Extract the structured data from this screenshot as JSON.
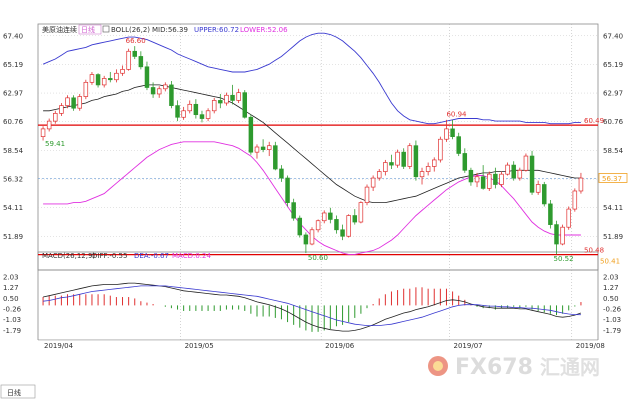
{
  "header": {
    "title": "美原油连续",
    "period": "日线",
    "boll_label": "BOLL(26,2)",
    "mid_label": "MID:56.39",
    "upper_label": "UPPER:60.72",
    "lower_label": "LOWER:52.06"
  },
  "macd_header": {
    "label": "MACD(26,12,9)",
    "diff_label": "DIFF:-0.55",
    "dea_label": "DEA:-0.67",
    "macd_label": "MACD:0.24"
  },
  "period_button": "日线",
  "watermark": {
    "brand": "FX678",
    "cn": "汇通网"
  },
  "colors": {
    "up": "#e03030",
    "down": "#2e9a2e",
    "mid_line": "#222222",
    "upper_band": "#3a3ad0",
    "lower_band": "#e030e0",
    "level_line": "#e00000",
    "last_price_box": "#f0a020"
  },
  "chart_data": {
    "type": "candlestick",
    "y_axis_price": [
      "67.40",
      "65.19",
      "62.97",
      "60.76",
      "58.54",
      "56.32",
      "54.11",
      "51.89"
    ],
    "y_axis_macd": [
      "2.03",
      "1.27",
      "0.50",
      "-0.26",
      "-1.03",
      "-1.79"
    ],
    "x_axis_labels": [
      "2019/04",
      "2019/05",
      "2019/06",
      "2019/07",
      "2019/08"
    ],
    "ylim": [
      49.6,
      68.0
    ],
    "macd_ylim": [
      -2.2,
      2.4
    ],
    "annotations": [
      "66.60",
      "59.41",
      "50.60",
      "60.94",
      "50.52",
      "60.49",
      "56.37",
      "50.48",
      "50.41"
    ],
    "resistance_level": 60.49,
    "support_level": 50.48,
    "last_close": 56.37,
    "series": [
      {
        "name": "K",
        "ohlc": [
          [
            59.6,
            60.4,
            59.3,
            60.2
          ],
          [
            60.2,
            61.0,
            60.0,
            60.8
          ],
          [
            60.8,
            61.6,
            60.6,
            61.4
          ],
          [
            61.4,
            62.2,
            61.2,
            62.0
          ],
          [
            62.0,
            62.8,
            61.8,
            62.6
          ],
          [
            62.6,
            62.8,
            61.6,
            61.8
          ],
          [
            61.8,
            62.9,
            61.6,
            62.7
          ],
          [
            62.7,
            64.0,
            62.5,
            63.8
          ],
          [
            63.8,
            64.6,
            63.6,
            64.4
          ],
          [
            64.4,
            64.5,
            63.4,
            63.6
          ],
          [
            63.6,
            64.3,
            63.4,
            64.1
          ],
          [
            64.1,
            64.6,
            63.8,
            64.0
          ],
          [
            64.0,
            64.8,
            63.8,
            64.5
          ],
          [
            64.5,
            65.1,
            64.3,
            64.8
          ],
          [
            64.8,
            66.4,
            64.7,
            66.2
          ],
          [
            66.2,
            66.6,
            65.6,
            65.8
          ],
          [
            65.8,
            66.2,
            64.8,
            65.0
          ],
          [
            65.0,
            65.4,
            63.2,
            63.4
          ],
          [
            63.4,
            63.8,
            62.6,
            62.9
          ],
          [
            62.9,
            63.5,
            62.6,
            63.3
          ],
          [
            63.3,
            63.8,
            63.1,
            63.6
          ],
          [
            63.6,
            63.9,
            61.8,
            62.0
          ],
          [
            62.0,
            62.4,
            60.8,
            61.1
          ],
          [
            61.1,
            61.9,
            60.9,
            61.6
          ],
          [
            61.6,
            62.4,
            61.4,
            62.1
          ],
          [
            62.1,
            62.5,
            61.0,
            61.3
          ],
          [
            61.3,
            61.6,
            60.7,
            61.0
          ],
          [
            61.0,
            61.8,
            60.8,
            61.6
          ],
          [
            61.6,
            62.6,
            61.4,
            62.4
          ],
          [
            62.4,
            62.9,
            61.8,
            62.2
          ],
          [
            62.2,
            63.0,
            62.0,
            62.8
          ],
          [
            62.8,
            63.6,
            62.1,
            62.4
          ],
          [
            62.4,
            63.3,
            62.2,
            63.0
          ],
          [
            63.0,
            63.2,
            61.0,
            61.1
          ],
          [
            61.1,
            61.3,
            58.2,
            58.4
          ],
          [
            58.4,
            59.0,
            57.9,
            58.8
          ],
          [
            58.8,
            59.4,
            58.4,
            58.6
          ],
          [
            58.6,
            59.2,
            58.1,
            58.9
          ],
          [
            58.9,
            59.2,
            57.0,
            57.1
          ],
          [
            57.1,
            57.4,
            56.1,
            56.4
          ],
          [
            56.4,
            56.6,
            54.2,
            54.5
          ],
          [
            54.5,
            54.8,
            53.1,
            53.3
          ],
          [
            53.3,
            53.5,
            51.8,
            52.0
          ],
          [
            52.0,
            52.2,
            50.6,
            51.3
          ],
          [
            51.3,
            52.6,
            51.2,
            52.4
          ],
          [
            52.4,
            53.2,
            52.2,
            53.1
          ],
          [
            53.1,
            53.9,
            52.9,
            53.7
          ],
          [
            53.7,
            54.1,
            52.9,
            53.2
          ],
          [
            53.2,
            53.5,
            52.1,
            52.4
          ],
          [
            52.4,
            52.8,
            51.6,
            51.9
          ],
          [
            51.9,
            53.6,
            51.8,
            53.5
          ],
          [
            53.5,
            54.0,
            52.8,
            53.0
          ],
          [
            53.0,
            54.6,
            52.9,
            54.5
          ],
          [
            54.5,
            55.9,
            54.3,
            55.7
          ],
          [
            55.7,
            56.6,
            55.4,
            56.4
          ],
          [
            56.4,
            57.1,
            56.2,
            56.9
          ],
          [
            56.9,
            57.8,
            56.6,
            57.6
          ],
          [
            57.6,
            58.2,
            57.1,
            57.4
          ],
          [
            57.4,
            58.6,
            57.2,
            58.4
          ],
          [
            58.4,
            58.7,
            57.1,
            57.3
          ],
          [
            57.3,
            59.1,
            57.1,
            58.9
          ],
          [
            58.9,
            59.3,
            56.2,
            56.5
          ],
          [
            56.5,
            57.2,
            55.9,
            56.9
          ],
          [
            56.9,
            57.6,
            56.6,
            57.3
          ],
          [
            57.3,
            58.0,
            56.9,
            57.8
          ],
          [
            57.8,
            59.6,
            57.6,
            59.4
          ],
          [
            59.4,
            60.9,
            59.2,
            60.2
          ],
          [
            60.2,
            60.9,
            59.4,
            59.6
          ],
          [
            59.6,
            59.9,
            58.1,
            58.3
          ],
          [
            58.3,
            58.7,
            56.8,
            57.0
          ],
          [
            57.0,
            57.2,
            55.8,
            56.1
          ],
          [
            56.1,
            56.8,
            55.7,
            56.5
          ],
          [
            56.5,
            57.4,
            55.5,
            55.6
          ],
          [
            55.6,
            56.9,
            55.4,
            56.7
          ],
          [
            56.7,
            57.2,
            55.6,
            55.9
          ],
          [
            55.9,
            56.9,
            55.7,
            56.7
          ],
          [
            56.7,
            57.6,
            56.6,
            57.4
          ],
          [
            57.4,
            57.7,
            56.2,
            56.4
          ],
          [
            56.4,
            57.2,
            56.2,
            57.0
          ],
          [
            57.0,
            58.3,
            56.9,
            58.1
          ],
          [
            58.1,
            58.5,
            55.1,
            55.3
          ],
          [
            55.3,
            56.2,
            55.1,
            55.9
          ],
          [
            55.9,
            56.1,
            54.2,
            54.4
          ],
          [
            54.4,
            54.7,
            52.5,
            52.8
          ],
          [
            52.8,
            53.1,
            50.5,
            51.3
          ],
          [
            51.3,
            52.8,
            51.2,
            52.6
          ],
          [
            52.6,
            54.2,
            52.4,
            54.0
          ],
          [
            54.0,
            55.6,
            53.8,
            55.4
          ],
          [
            55.4,
            56.8,
            55.2,
            56.4
          ]
        ]
      },
      {
        "name": "MID",
        "values": [
          61.6,
          61.6,
          61.7,
          61.8,
          61.9,
          62.0,
          62.1,
          62.2,
          62.4,
          62.5,
          62.7,
          62.8,
          62.9,
          63.1,
          63.2,
          63.4,
          63.5,
          63.6,
          63.6,
          63.6,
          63.5,
          63.4,
          63.3,
          63.2,
          63.1,
          63.0,
          62.9,
          62.8,
          62.7,
          62.6,
          62.4,
          62.2,
          61.9,
          61.6,
          61.3,
          61.0,
          60.7,
          60.3,
          59.9,
          59.5,
          59.1,
          58.7,
          58.3,
          57.9,
          57.5,
          57.1,
          56.7,
          56.3,
          55.9,
          55.6,
          55.3,
          55.0,
          54.8,
          54.6,
          54.5,
          54.5,
          54.5,
          54.6,
          54.7,
          54.8,
          54.9,
          55.0,
          55.2,
          55.4,
          55.6,
          55.8,
          56.0,
          56.2,
          56.4,
          56.5,
          56.6,
          56.7,
          56.8,
          56.8,
          56.9,
          56.9,
          56.9,
          57.0,
          57.0,
          57.0,
          57.0,
          57.0,
          56.9,
          56.8,
          56.7,
          56.6,
          56.5,
          56.4,
          56.4
        ]
      },
      {
        "name": "UPPER",
        "values": [
          65.2,
          65.4,
          65.6,
          65.9,
          66.2,
          66.3,
          66.4,
          66.5,
          66.7,
          66.8,
          66.9,
          67.0,
          67.1,
          67.2,
          67.3,
          67.3,
          67.2,
          67.1,
          66.9,
          66.7,
          66.5,
          66.3,
          66.0,
          65.8,
          65.6,
          65.4,
          65.2,
          65.0,
          64.9,
          64.8,
          64.7,
          64.6,
          64.6,
          64.6,
          64.7,
          64.8,
          65.0,
          65.2,
          65.5,
          65.8,
          66.2,
          66.6,
          67.0,
          67.3,
          67.5,
          67.6,
          67.6,
          67.5,
          67.3,
          67.0,
          66.6,
          66.2,
          65.7,
          65.1,
          64.5,
          63.8,
          63.0,
          62.2,
          61.6,
          61.2,
          60.9,
          60.8,
          60.7,
          60.6,
          60.6,
          60.7,
          60.8,
          60.9,
          61.0,
          61.0,
          61.0,
          61.0,
          60.9,
          60.9,
          60.8,
          60.8,
          60.8,
          60.8,
          60.8,
          60.7,
          60.7,
          60.7,
          60.7,
          60.6,
          60.6,
          60.6,
          60.6,
          60.7,
          60.7
        ]
      },
      {
        "name": "LOWER",
        "values": [
          54.4,
          54.4,
          54.4,
          54.4,
          54.4,
          54.5,
          54.5,
          54.6,
          54.8,
          55.0,
          55.2,
          55.6,
          56.0,
          56.4,
          56.8,
          57.2,
          57.6,
          58.0,
          58.3,
          58.6,
          58.8,
          59.0,
          59.1,
          59.2,
          59.2,
          59.2,
          59.2,
          59.2,
          59.2,
          59.1,
          59.0,
          58.9,
          58.7,
          58.4,
          58.1,
          57.6,
          57.0,
          56.3,
          55.6,
          54.9,
          54.2,
          53.5,
          52.9,
          52.4,
          51.9,
          51.5,
          51.2,
          51.0,
          50.8,
          50.6,
          50.5,
          50.5,
          50.6,
          50.7,
          50.8,
          51.0,
          51.3,
          51.6,
          52.0,
          52.5,
          53.0,
          53.5,
          53.9,
          54.3,
          54.7,
          55.1,
          55.5,
          55.8,
          56.1,
          56.3,
          56.5,
          56.6,
          56.6,
          56.4,
          56.2,
          55.8,
          55.3,
          54.8,
          54.2,
          53.6,
          53.0,
          52.6,
          52.3,
          52.1,
          52.0,
          52.0,
          52.0,
          52.0,
          52.0
        ]
      },
      {
        "name": "DIFF",
        "values": [
          0.6,
          0.7,
          0.8,
          0.9,
          1.0,
          1.1,
          1.2,
          1.3,
          1.4,
          1.45,
          1.5,
          1.5,
          1.5,
          1.55,
          1.6,
          1.6,
          1.55,
          1.5,
          1.45,
          1.4,
          1.35,
          1.25,
          1.15,
          1.05,
          1.0,
          0.95,
          0.9,
          0.85,
          0.8,
          0.75,
          0.75,
          0.7,
          0.65,
          0.55,
          0.4,
          0.25,
          0.15,
          0.05,
          -0.1,
          -0.25,
          -0.45,
          -0.7,
          -0.95,
          -1.2,
          -1.4,
          -1.55,
          -1.65,
          -1.75,
          -1.8,
          -1.85,
          -1.85,
          -1.8,
          -1.7,
          -1.55,
          -1.4,
          -1.2,
          -1.0,
          -0.85,
          -0.7,
          -0.55,
          -0.45,
          -0.3,
          -0.2,
          -0.1,
          0.05,
          0.2,
          0.35,
          0.4,
          0.35,
          0.25,
          0.1,
          0.0,
          -0.1,
          -0.15,
          -0.2,
          -0.2,
          -0.2,
          -0.2,
          -0.25,
          -0.25,
          -0.35,
          -0.45,
          -0.55,
          -0.65,
          -0.8,
          -0.85,
          -0.8,
          -0.7,
          -0.55
        ]
      },
      {
        "name": "DEA",
        "values": [
          0.3,
          0.35,
          0.45,
          0.55,
          0.6,
          0.7,
          0.8,
          0.9,
          1.0,
          1.05,
          1.1,
          1.15,
          1.2,
          1.25,
          1.3,
          1.35,
          1.4,
          1.4,
          1.4,
          1.4,
          1.4,
          1.35,
          1.3,
          1.25,
          1.2,
          1.15,
          1.1,
          1.05,
          1.0,
          0.95,
          0.9,
          0.85,
          0.8,
          0.75,
          0.7,
          0.65,
          0.55,
          0.45,
          0.35,
          0.25,
          0.15,
          0.0,
          -0.15,
          -0.3,
          -0.45,
          -0.6,
          -0.75,
          -0.9,
          -1.05,
          -1.15,
          -1.25,
          -1.35,
          -1.4,
          -1.45,
          -1.45,
          -1.45,
          -1.4,
          -1.35,
          -1.25,
          -1.15,
          -1.05,
          -0.95,
          -0.85,
          -0.7,
          -0.55,
          -0.4,
          -0.25,
          -0.1,
          0.0,
          0.05,
          0.05,
          0.05,
          0.0,
          -0.05,
          -0.05,
          -0.1,
          -0.1,
          -0.15,
          -0.15,
          -0.2,
          -0.2,
          -0.25,
          -0.3,
          -0.35,
          -0.45,
          -0.55,
          -0.62,
          -0.66,
          -0.67
        ]
      }
    ]
  }
}
